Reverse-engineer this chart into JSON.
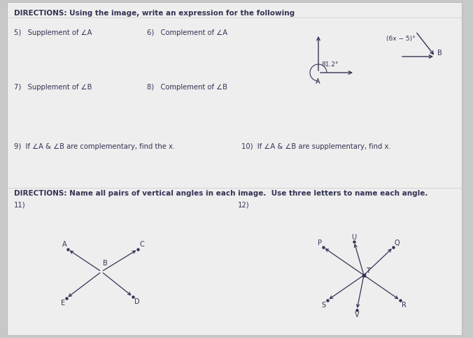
{
  "bg_color": "#c8c8c8",
  "paper_color": "#efefef",
  "title1": "DIRECTIONS: Using the image, write an expression for the following",
  "q5": "5)   Supplement of ∠A",
  "q6": "6)   Complement of ∠A",
  "q7": "7)   Supplement of ∠B",
  "q8": "8)   Complement of ∠B",
  "q9": "9)  If ∠A & ∠B are complementary, find the x.",
  "q10": "10)  If ∠A & ∠B are supplementary, find x.",
  "title2": "DIRECTIONS: Name all pairs of vertical angles in each image.  Use three letters to name each angle.",
  "q11": "11)",
  "q12": "12)",
  "angle_label_A": "81.2°",
  "angle_label_B": "(6x − 5)°",
  "text_color": "#333355",
  "line_color": "#333355"
}
